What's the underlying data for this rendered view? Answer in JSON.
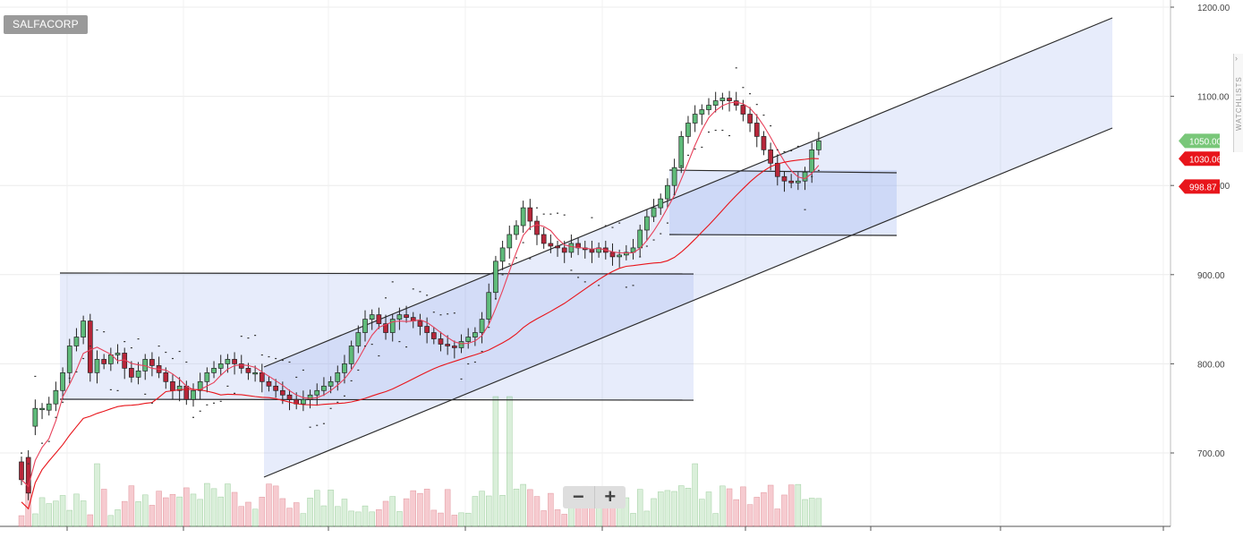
{
  "ticker": "SALFACORP",
  "zoom": {
    "minus": "−",
    "plus": "+"
  },
  "sidebar": {
    "label": "WATCHLISTS",
    "arrow": "›"
  },
  "price_tags": [
    {
      "value": 1050.0,
      "text": "1050.00",
      "color": "#79c779"
    },
    {
      "value": 1030.06,
      "text": "1030.06",
      "color": "#e8151b"
    },
    {
      "value": 998.87,
      "text": "998.87",
      "color": "#e8151b"
    }
  ],
  "chart_data": {
    "type": "candlestick",
    "y_axis": {
      "min": 625,
      "max": 1200,
      "ticks": [
        700,
        800,
        900,
        1000,
        1100,
        1200
      ],
      "tick_labels": [
        "700.00",
        "800.00",
        "900.00",
        "1000.00",
        "1100.00",
        "1200.00"
      ],
      "position": "right"
    },
    "grid": true,
    "start": 690,
    "ohlc": [
      [
        690,
        670,
        "nd"
      ],
      [
        695,
        655,
        "nd"
      ],
      [
        730,
        750,
        "nu"
      ],
      [
        750,
        750,
        "no"
      ],
      [
        748,
        755,
        "no"
      ],
      [
        755,
        770,
        "nu"
      ],
      [
        770,
        790,
        "nu"
      ],
      [
        790,
        820,
        "nu"
      ],
      [
        820,
        830,
        "nu"
      ],
      [
        830,
        848,
        "nu"
      ],
      [
        848,
        790,
        "no"
      ],
      [
        790,
        805,
        "no"
      ],
      [
        805,
        800,
        "no"
      ],
      [
        800,
        810,
        "no"
      ],
      [
        810,
        812,
        "no"
      ],
      [
        812,
        795,
        "no"
      ],
      [
        795,
        785,
        "no"
      ],
      [
        785,
        792,
        "no"
      ],
      [
        792,
        805,
        "no"
      ],
      [
        805,
        798,
        "no"
      ],
      [
        798,
        790,
        "no"
      ],
      [
        790,
        780,
        "no"
      ],
      [
        780,
        770,
        "no"
      ],
      [
        770,
        775,
        "no"
      ],
      [
        775,
        760,
        "no"
      ],
      [
        760,
        770,
        "no"
      ],
      [
        770,
        780,
        "no"
      ],
      [
        780,
        790,
        "no"
      ],
      [
        790,
        795,
        "no"
      ],
      [
        795,
        800,
        "no"
      ],
      [
        800,
        805,
        "no"
      ],
      [
        805,
        800,
        "no"
      ],
      [
        800,
        795,
        "no"
      ],
      [
        795,
        790,
        "no"
      ],
      [
        790,
        790,
        "no"
      ],
      [
        790,
        780,
        "no"
      ],
      [
        780,
        775,
        "no"
      ],
      [
        775,
        770,
        "no"
      ],
      [
        770,
        765,
        "no"
      ],
      [
        765,
        760,
        "no"
      ],
      [
        760,
        755,
        "no"
      ],
      [
        755,
        760,
        "no"
      ],
      [
        760,
        765,
        "no"
      ],
      [
        765,
        770,
        "no"
      ],
      [
        770,
        775,
        "no"
      ],
      [
        775,
        780,
        "no"
      ],
      [
        780,
        790,
        "no"
      ],
      [
        790,
        800,
        "no"
      ],
      [
        800,
        820,
        "no"
      ],
      [
        820,
        835,
        "no"
      ],
      [
        835,
        850,
        "no"
      ],
      [
        850,
        855,
        "no"
      ],
      [
        855,
        845,
        "no"
      ],
      [
        845,
        835,
        "no"
      ],
      [
        835,
        850,
        "no"
      ],
      [
        850,
        855,
        "no"
      ],
      [
        855,
        852,
        "no"
      ],
      [
        852,
        848,
        "no"
      ],
      [
        848,
        842,
        "no"
      ],
      [
        842,
        835,
        "no"
      ],
      [
        835,
        828,
        "no"
      ],
      [
        828,
        822,
        "no"
      ],
      [
        822,
        820,
        "no"
      ],
      [
        820,
        818,
        "no"
      ],
      [
        818,
        825,
        "no"
      ],
      [
        825,
        830,
        "no"
      ],
      [
        830,
        835,
        "no"
      ],
      [
        835,
        850,
        "no"
      ],
      [
        850,
        880,
        "no"
      ],
      [
        880,
        915,
        "no"
      ],
      [
        915,
        930,
        "no"
      ],
      [
        930,
        945,
        "no"
      ],
      [
        945,
        955,
        "no"
      ],
      [
        955,
        975,
        "no"
      ],
      [
        975,
        960,
        "no"
      ],
      [
        960,
        945,
        "no"
      ],
      [
        945,
        935,
        "no"
      ],
      [
        935,
        932,
        "no"
      ],
      [
        932,
        930,
        "no"
      ],
      [
        930,
        925,
        "no"
      ],
      [
        925,
        935,
        "no"
      ],
      [
        935,
        930,
        "no"
      ],
      [
        930,
        928,
        "no"
      ],
      [
        928,
        925,
        "no"
      ],
      [
        925,
        930,
        "no"
      ],
      [
        930,
        925,
        "no"
      ],
      [
        925,
        920,
        "no"
      ],
      [
        920,
        922,
        "no"
      ],
      [
        922,
        925,
        "no"
      ],
      [
        925,
        930,
        "no"
      ],
      [
        930,
        950,
        "no"
      ],
      [
        950,
        965,
        "no"
      ],
      [
        965,
        975,
        "no"
      ],
      [
        975,
        985,
        "no"
      ],
      [
        985,
        1000,
        "no"
      ],
      [
        1000,
        1020,
        "no"
      ],
      [
        1020,
        1055,
        "no"
      ],
      [
        1055,
        1070,
        "no"
      ],
      [
        1070,
        1080,
        "no"
      ],
      [
        1080,
        1085,
        "no"
      ],
      [
        1085,
        1090,
        "no"
      ],
      [
        1090,
        1095,
        "no"
      ],
      [
        1095,
        1098,
        "no"
      ],
      [
        1098,
        1095,
        "no"
      ],
      [
        1095,
        1090,
        "no"
      ],
      [
        1090,
        1080,
        "no"
      ],
      [
        1080,
        1070,
        "no"
      ],
      [
        1070,
        1055,
        "no"
      ],
      [
        1055,
        1040,
        "no"
      ],
      [
        1040,
        1025,
        "no"
      ],
      [
        1025,
        1010,
        "no"
      ],
      [
        1010,
        1005,
        "no"
      ],
      [
        1005,
        1003,
        "no"
      ],
      [
        1003,
        1005,
        "no"
      ],
      [
        1005,
        1015,
        "no"
      ],
      [
        1015,
        1040,
        "no"
      ],
      [
        1040,
        1050,
        "no"
      ]
    ]
  }
}
